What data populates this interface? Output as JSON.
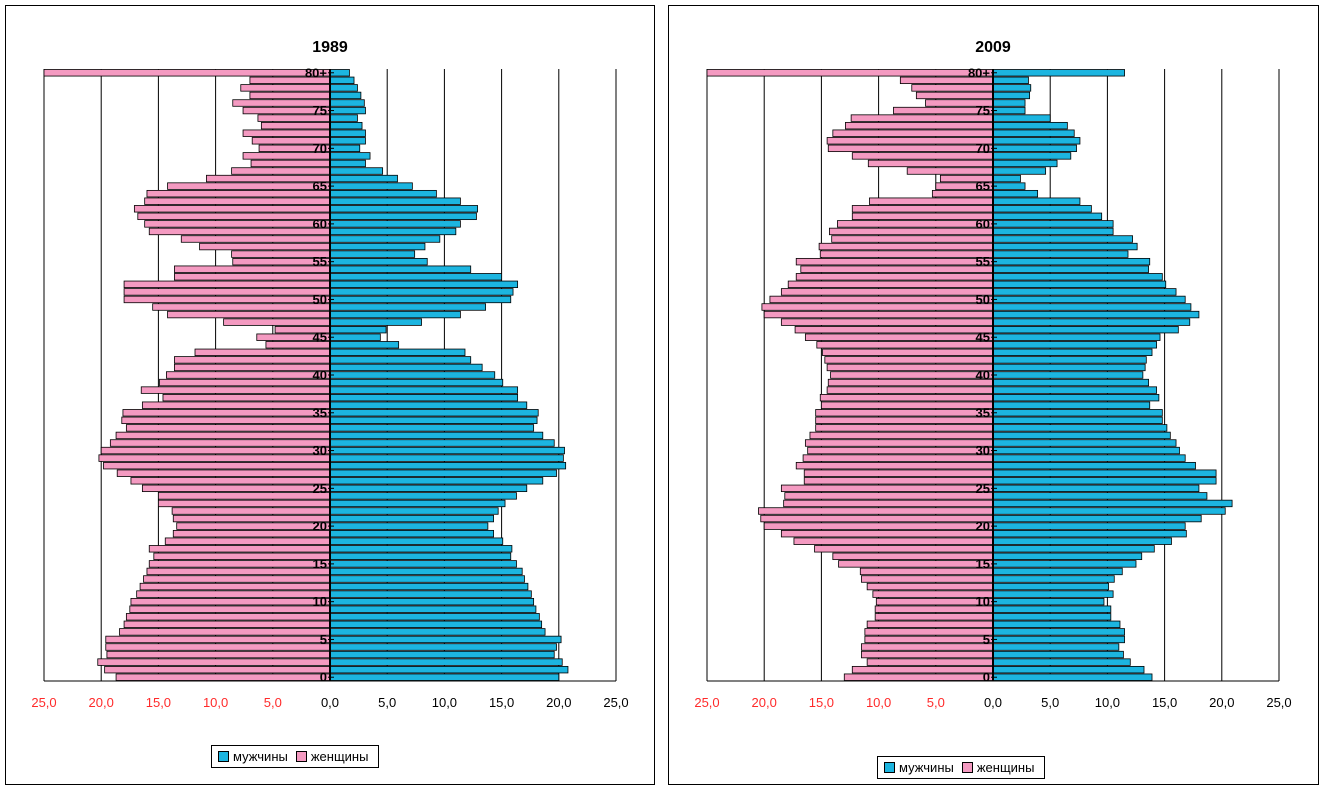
{
  "legend": {
    "male_label": "мужчины",
    "female_label": "женщины",
    "male_color": "#1cb5e0",
    "female_color": "#f49ac1"
  },
  "chart_data": [
    {
      "type": "bar",
      "title": "1989",
      "ages": [
        "0",
        "1",
        "2",
        "3",
        "4",
        "5",
        "6",
        "7",
        "8",
        "9",
        "10",
        "11",
        "12",
        "13",
        "14",
        "15",
        "16",
        "17",
        "18",
        "19",
        "20",
        "21",
        "22",
        "23",
        "24",
        "25",
        "26",
        "27",
        "28",
        "29",
        "30",
        "31",
        "32",
        "33",
        "34",
        "35",
        "36",
        "37",
        "38",
        "39",
        "40",
        "41",
        "42",
        "43",
        "44",
        "45",
        "46",
        "47",
        "48",
        "49",
        "50",
        "51",
        "52",
        "53",
        "54",
        "55",
        "56",
        "57",
        "58",
        "59",
        "60",
        "61",
        "62",
        "63",
        "64",
        "65",
        "66",
        "67",
        "68",
        "69",
        "70",
        "71",
        "72",
        "73",
        "74",
        "75",
        "76",
        "77",
        "78",
        "79",
        "80+"
      ],
      "age_tick_labels": [
        "0",
        "5",
        "10",
        "15",
        "20",
        "25",
        "30",
        "35",
        "40",
        "45",
        "50",
        "55",
        "60",
        "65",
        "70",
        "75",
        "80+"
      ],
      "x_tick_labels_left": [
        "25,0",
        "20,0",
        "15,0",
        "10,0",
        "5,0"
      ],
      "x_tick_labels_right": [
        "0,0",
        "5,0",
        "10,0",
        "15,0",
        "20,0",
        "25,0"
      ],
      "xlim": [
        -25,
        25
      ],
      "series": [
        {
          "name": "мужчины",
          "values": [
            20.0,
            20.8,
            20.3,
            19.6,
            19.8,
            20.2,
            18.8,
            18.5,
            18.3,
            18.0,
            17.8,
            17.6,
            17.3,
            17.0,
            16.8,
            16.3,
            15.8,
            15.9,
            15.1,
            14.3,
            13.8,
            14.3,
            14.7,
            15.3,
            16.3,
            17.2,
            18.6,
            19.8,
            20.6,
            20.4,
            20.5,
            19.6,
            18.6,
            17.8,
            18.1,
            18.2,
            17.2,
            16.4,
            16.4,
            15.1,
            14.4,
            13.3,
            12.3,
            11.8,
            6.0,
            4.4,
            4.9,
            8.0,
            11.4,
            13.6,
            15.8,
            16.0,
            16.4,
            15.0,
            12.3,
            8.5,
            7.4,
            8.3,
            9.6,
            11.0,
            11.4,
            12.8,
            12.9,
            11.4,
            9.3,
            7.2,
            5.9,
            4.6,
            3.1,
            3.5,
            2.6,
            3.1,
            3.1,
            2.8,
            2.4,
            3.1,
            3.0,
            2.7,
            2.4,
            2.1,
            1.7
          ]
        },
        {
          "name": "женщины",
          "values": [
            -18.7,
            -19.7,
            -20.3,
            -19.5,
            -19.6,
            -19.6,
            -18.4,
            -18.0,
            -17.8,
            -17.5,
            -17.4,
            -16.9,
            -16.6,
            -16.3,
            -16.0,
            -15.8,
            -15.4,
            -15.8,
            -14.4,
            -13.7,
            -13.4,
            -13.7,
            -13.8,
            -15.0,
            -15.0,
            -16.4,
            -17.4,
            -18.6,
            -19.8,
            -20.2,
            -20.0,
            -19.2,
            -18.7,
            -17.8,
            -18.2,
            -18.1,
            -16.4,
            -14.6,
            -16.5,
            -14.9,
            -14.3,
            -13.6,
            -13.6,
            -11.8,
            -5.6,
            -6.4,
            -4.8,
            -9.3,
            -14.2,
            -15.5,
            -18.0,
            -18.0,
            -18.0,
            -13.6,
            -13.6,
            -8.5,
            -8.6,
            -11.4,
            -13.0,
            -15.8,
            -16.2,
            -16.8,
            -17.1,
            -16.2,
            -16.0,
            -14.2,
            -10.8,
            -8.6,
            -6.9,
            -7.6,
            -6.2,
            -6.8,
            -7.6,
            -6.0,
            -6.3,
            -7.6,
            -8.5,
            -7.0,
            -7.8,
            -7.0,
            -25.0
          ]
        }
      ]
    },
    {
      "type": "bar",
      "title": "2009",
      "ages": [
        "0",
        "1",
        "2",
        "3",
        "4",
        "5",
        "6",
        "7",
        "8",
        "9",
        "10",
        "11",
        "12",
        "13",
        "14",
        "15",
        "16",
        "17",
        "18",
        "19",
        "20",
        "21",
        "22",
        "23",
        "24",
        "25",
        "26",
        "27",
        "28",
        "29",
        "30",
        "31",
        "32",
        "33",
        "34",
        "35",
        "36",
        "37",
        "38",
        "39",
        "40",
        "41",
        "42",
        "43",
        "44",
        "45",
        "46",
        "47",
        "48",
        "49",
        "50",
        "51",
        "52",
        "53",
        "54",
        "55",
        "56",
        "57",
        "58",
        "59",
        "60",
        "61",
        "62",
        "63",
        "64",
        "65",
        "66",
        "67",
        "68",
        "69",
        "70",
        "71",
        "72",
        "73",
        "74",
        "75",
        "76",
        "77",
        "78",
        "79",
        "80+"
      ],
      "age_tick_labels": [
        "0",
        "5",
        "10",
        "15",
        "20",
        "25",
        "30",
        "35",
        "40",
        "45",
        "50",
        "55",
        "60",
        "65",
        "70",
        "75",
        "80+"
      ],
      "x_tick_labels_left": [
        "25,0",
        "20,0",
        "15,0",
        "10,0",
        "5,0"
      ],
      "x_tick_labels_right": [
        "0,0",
        "5,0",
        "10,0",
        "15,0",
        "20,0",
        "25,0"
      ],
      "xlim": [
        -25,
        25
      ],
      "series": [
        {
          "name": "мужчины",
          "values": [
            13.9,
            13.2,
            12.0,
            11.4,
            11.0,
            11.5,
            11.5,
            11.1,
            10.3,
            10.3,
            9.7,
            10.5,
            10.1,
            10.6,
            11.3,
            12.5,
            13.0,
            14.1,
            15.6,
            16.9,
            16.8,
            18.2,
            20.3,
            20.9,
            18.7,
            18.0,
            19.5,
            19.5,
            17.7,
            16.8,
            16.3,
            16.0,
            15.5,
            15.2,
            14.8,
            14.8,
            13.7,
            14.5,
            14.3,
            13.6,
            13.1,
            13.3,
            13.4,
            13.9,
            14.3,
            14.6,
            16.2,
            17.2,
            18.0,
            17.3,
            16.8,
            16.0,
            15.1,
            14.8,
            13.6,
            13.7,
            11.8,
            12.6,
            12.2,
            10.5,
            10.5,
            9.5,
            8.6,
            7.6,
            3.9,
            2.8,
            2.4,
            4.6,
            5.6,
            6.8,
            7.3,
            7.6,
            7.1,
            6.5,
            5.0,
            2.8,
            2.8,
            3.2,
            3.3,
            3.1,
            11.5
          ]
        },
        {
          "name": "женщины",
          "values": [
            -13.0,
            -12.3,
            -11.0,
            -11.5,
            -11.5,
            -11.2,
            -11.2,
            -11.0,
            -10.3,
            -10.3,
            -10.2,
            -10.5,
            -11.0,
            -11.5,
            -11.6,
            -13.5,
            -14.0,
            -15.6,
            -17.4,
            -18.5,
            -20.0,
            -20.3,
            -20.5,
            -18.3,
            -18.2,
            -18.5,
            -16.5,
            -16.5,
            -17.2,
            -16.6,
            -16.2,
            -16.4,
            -16.0,
            -15.5,
            -15.5,
            -15.5,
            -15.0,
            -15.1,
            -14.5,
            -14.4,
            -14.2,
            -14.5,
            -14.7,
            -14.9,
            -15.4,
            -16.4,
            -17.3,
            -18.5,
            -20.0,
            -20.2,
            -19.5,
            -18.5,
            -17.9,
            -17.2,
            -16.8,
            -17.2,
            -15.1,
            -15.2,
            -14.1,
            -14.3,
            -13.6,
            -12.3,
            -12.3,
            -10.8,
            -5.3,
            -5.0,
            -4.6,
            -7.5,
            -10.9,
            -12.3,
            -14.4,
            -14.5,
            -14.0,
            -12.9,
            -12.4,
            -8.7,
            -5.9,
            -6.7,
            -7.1,
            -8.1,
            -25.0
          ]
        }
      ]
    }
  ]
}
